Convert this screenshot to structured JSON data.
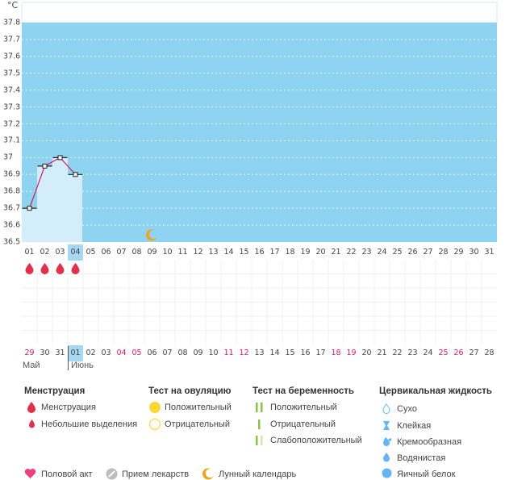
{
  "chart": {
    "unit": "°C",
    "y_ticks": [
      "37.8",
      "37.7",
      "37.6",
      "37.5",
      "37.4",
      "37.3",
      "37.2",
      "37.1",
      "37",
      "36.9",
      "36.8",
      "36.7",
      "36.6",
      "36.5"
    ],
    "colors": {
      "bg": "#8ed3f0",
      "filled": "#d3edfb",
      "line": "#d81b60",
      "white_strip": "#ffffff"
    }
  },
  "chart_data": {
    "type": "line",
    "title": "",
    "xlabel": "",
    "ylabel": "°C",
    "ylim": [
      36.5,
      37.8
    ],
    "x": [
      "01",
      "02",
      "03",
      "04"
    ],
    "series": [
      {
        "values": [
          36.7,
          36.95,
          37.0,
          36.9
        ]
      }
    ]
  },
  "cycle_days": [
    "01",
    "02",
    "03",
    "04",
    "05",
    "06",
    "07",
    "08",
    "09",
    "10",
    "11",
    "12",
    "13",
    "14",
    "15",
    "16",
    "17",
    "18",
    "19",
    "20",
    "21",
    "22",
    "23",
    "24",
    "25",
    "26",
    "27",
    "28",
    "29",
    "30",
    "31"
  ],
  "cycle_selected_index": 3,
  "moon_day_index": 8,
  "menstruation_days": [
    0,
    1,
    2,
    3
  ],
  "calendar_days": [
    {
      "d": "29",
      "red": true
    },
    {
      "d": "30",
      "red": false
    },
    {
      "d": "31",
      "red": false
    },
    {
      "d": "01",
      "red": false,
      "sel": true
    },
    {
      "d": "02",
      "red": false
    },
    {
      "d": "03",
      "red": false
    },
    {
      "d": "04",
      "red": true
    },
    {
      "d": "05",
      "red": true
    },
    {
      "d": "06",
      "red": false
    },
    {
      "d": "07",
      "red": false
    },
    {
      "d": "08",
      "red": false
    },
    {
      "d": "09",
      "red": false
    },
    {
      "d": "10",
      "red": false
    },
    {
      "d": "11",
      "red": true
    },
    {
      "d": "12",
      "red": true
    },
    {
      "d": "13",
      "red": false
    },
    {
      "d": "14",
      "red": false
    },
    {
      "d": "15",
      "red": false
    },
    {
      "d": "16",
      "red": false
    },
    {
      "d": "17",
      "red": false
    },
    {
      "d": "18",
      "red": true
    },
    {
      "d": "19",
      "red": true
    },
    {
      "d": "20",
      "red": false
    },
    {
      "d": "21",
      "red": false
    },
    {
      "d": "22",
      "red": false
    },
    {
      "d": "23",
      "red": false
    },
    {
      "d": "24",
      "red": false
    },
    {
      "d": "25",
      "red": true
    },
    {
      "d": "26",
      "red": true
    },
    {
      "d": "27",
      "red": false
    },
    {
      "d": "28",
      "red": false
    }
  ],
  "months": {
    "may": "Май",
    "june": "Июнь"
  },
  "legend": {
    "menstruation": {
      "title": "Менструация",
      "items": [
        "Менструация",
        "Небольшие выделения"
      ]
    },
    "ovulation": {
      "title": "Тест на овуляцию",
      "items": [
        "Положительный",
        "Отрицательный"
      ]
    },
    "pregnancy": {
      "title": "Тест на беременность",
      "items": [
        "Положительный",
        "Отрицательный",
        "Слабоположительный"
      ]
    },
    "cervical": {
      "title": "Цервикальная жидкость",
      "items": [
        "Сухо",
        "Клейкая",
        "Кремообразная",
        "Водянистая",
        "Яичный белок"
      ]
    },
    "bottom": [
      "Половой акт",
      "Прием лекарств",
      "Лунный календарь"
    ]
  }
}
